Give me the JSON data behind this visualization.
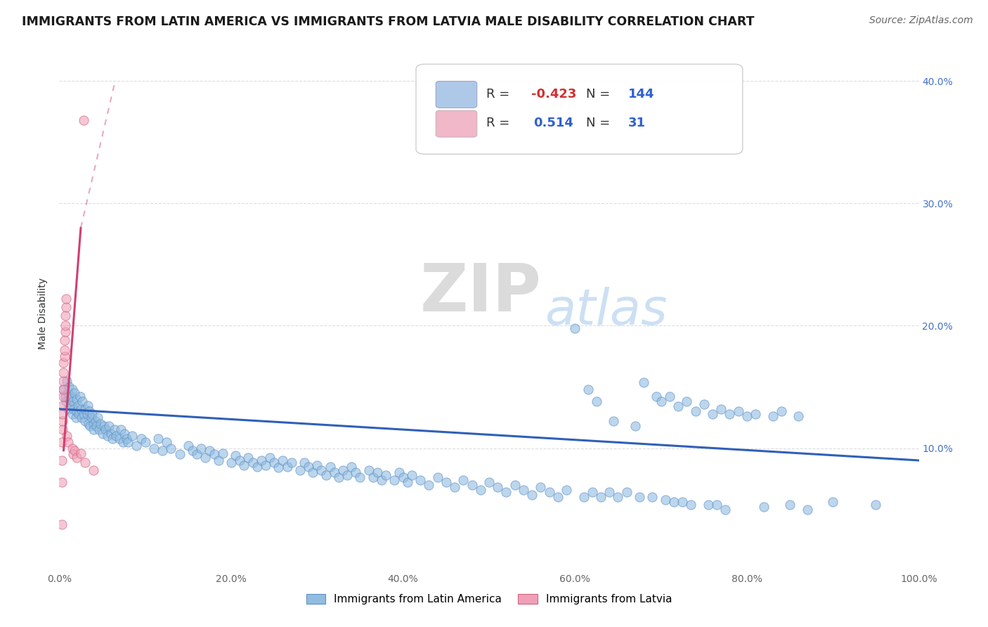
{
  "title": "IMMIGRANTS FROM LATIN AMERICA VS IMMIGRANTS FROM LATVIA MALE DISABILITY CORRELATION CHART",
  "source": "Source: ZipAtlas.com",
  "ylabel": "Male Disability",
  "xlim": [
    0,
    1.0
  ],
  "ylim": [
    0,
    0.42
  ],
  "xticks": [
    0.0,
    0.1,
    0.2,
    0.3,
    0.4,
    0.5,
    0.6,
    0.7,
    0.8,
    0.9,
    1.0
  ],
  "xticklabels": [
    "0.0%",
    "",
    "20.0%",
    "",
    "40.0%",
    "",
    "60.0%",
    "",
    "80.0%",
    "",
    "100.0%"
  ],
  "yticks": [
    0.0,
    0.1,
    0.2,
    0.3,
    0.4
  ],
  "ylabels_left": [
    "",
    "",
    "",
    "",
    ""
  ],
  "ylabels_right": [
    "",
    "10.0%",
    "20.0%",
    "30.0%",
    "40.0%"
  ],
  "legend_entries": [
    {
      "label": "Immigrants from Latin America",
      "color": "#aec8e8",
      "R": "-0.423",
      "N": "144"
    },
    {
      "label": "Immigrants from Latvia",
      "color": "#f0b8c8",
      "R": "0.514",
      "N": "31"
    }
  ],
  "blue_scatter": [
    [
      0.005,
      0.148
    ],
    [
      0.007,
      0.142
    ],
    [
      0.008,
      0.138
    ],
    [
      0.009,
      0.155
    ],
    [
      0.01,
      0.145
    ],
    [
      0.01,
      0.132
    ],
    [
      0.011,
      0.15
    ],
    [
      0.012,
      0.14
    ],
    [
      0.013,
      0.135
    ],
    [
      0.014,
      0.142
    ],
    [
      0.015,
      0.148
    ],
    [
      0.015,
      0.128
    ],
    [
      0.016,
      0.138
    ],
    [
      0.017,
      0.132
    ],
    [
      0.018,
      0.145
    ],
    [
      0.019,
      0.125
    ],
    [
      0.02,
      0.14
    ],
    [
      0.02,
      0.13
    ],
    [
      0.022,
      0.135
    ],
    [
      0.023,
      0.128
    ],
    [
      0.024,
      0.142
    ],
    [
      0.025,
      0.132
    ],
    [
      0.026,
      0.125
    ],
    [
      0.027,
      0.138
    ],
    [
      0.028,
      0.128
    ],
    [
      0.03,
      0.132
    ],
    [
      0.03,
      0.122
    ],
    [
      0.032,
      0.128
    ],
    [
      0.033,
      0.135
    ],
    [
      0.034,
      0.12
    ],
    [
      0.035,
      0.13
    ],
    [
      0.036,
      0.118
    ],
    [
      0.037,
      0.125
    ],
    [
      0.038,
      0.128
    ],
    [
      0.04,
      0.12
    ],
    [
      0.04,
      0.115
    ],
    [
      0.042,
      0.122
    ],
    [
      0.043,
      0.118
    ],
    [
      0.045,
      0.125
    ],
    [
      0.046,
      0.115
    ],
    [
      0.048,
      0.12
    ],
    [
      0.05,
      0.112
    ],
    [
      0.052,
      0.118
    ],
    [
      0.054,
      0.115
    ],
    [
      0.056,
      0.11
    ],
    [
      0.058,
      0.118
    ],
    [
      0.06,
      0.112
    ],
    [
      0.062,
      0.108
    ],
    [
      0.064,
      0.115
    ],
    [
      0.066,
      0.11
    ],
    [
      0.07,
      0.108
    ],
    [
      0.072,
      0.115
    ],
    [
      0.074,
      0.105
    ],
    [
      0.076,
      0.112
    ],
    [
      0.078,
      0.108
    ],
    [
      0.08,
      0.105
    ],
    [
      0.085,
      0.11
    ],
    [
      0.09,
      0.102
    ],
    [
      0.095,
      0.108
    ],
    [
      0.1,
      0.105
    ],
    [
      0.11,
      0.1
    ],
    [
      0.115,
      0.108
    ],
    [
      0.12,
      0.098
    ],
    [
      0.125,
      0.105
    ],
    [
      0.13,
      0.1
    ],
    [
      0.14,
      0.095
    ],
    [
      0.15,
      0.102
    ],
    [
      0.155,
      0.098
    ],
    [
      0.16,
      0.095
    ],
    [
      0.165,
      0.1
    ],
    [
      0.17,
      0.092
    ],
    [
      0.175,
      0.098
    ],
    [
      0.18,
      0.095
    ],
    [
      0.185,
      0.09
    ],
    [
      0.19,
      0.096
    ],
    [
      0.2,
      0.088
    ],
    [
      0.205,
      0.094
    ],
    [
      0.21,
      0.09
    ],
    [
      0.215,
      0.086
    ],
    [
      0.22,
      0.092
    ],
    [
      0.225,
      0.088
    ],
    [
      0.23,
      0.085
    ],
    [
      0.235,
      0.09
    ],
    [
      0.24,
      0.086
    ],
    [
      0.245,
      0.092
    ],
    [
      0.25,
      0.088
    ],
    [
      0.255,
      0.084
    ],
    [
      0.26,
      0.09
    ],
    [
      0.265,
      0.085
    ],
    [
      0.27,
      0.088
    ],
    [
      0.28,
      0.082
    ],
    [
      0.285,
      0.088
    ],
    [
      0.29,
      0.085
    ],
    [
      0.295,
      0.08
    ],
    [
      0.3,
      0.086
    ],
    [
      0.305,
      0.082
    ],
    [
      0.31,
      0.078
    ],
    [
      0.315,
      0.085
    ],
    [
      0.32,
      0.08
    ],
    [
      0.325,
      0.076
    ],
    [
      0.33,
      0.082
    ],
    [
      0.335,
      0.078
    ],
    [
      0.34,
      0.085
    ],
    [
      0.345,
      0.08
    ],
    [
      0.35,
      0.076
    ],
    [
      0.36,
      0.082
    ],
    [
      0.365,
      0.076
    ],
    [
      0.37,
      0.08
    ],
    [
      0.375,
      0.074
    ],
    [
      0.38,
      0.078
    ],
    [
      0.39,
      0.074
    ],
    [
      0.395,
      0.08
    ],
    [
      0.4,
      0.076
    ],
    [
      0.405,
      0.072
    ],
    [
      0.41,
      0.078
    ],
    [
      0.42,
      0.074
    ],
    [
      0.43,
      0.07
    ],
    [
      0.44,
      0.076
    ],
    [
      0.45,
      0.072
    ],
    [
      0.46,
      0.068
    ],
    [
      0.47,
      0.074
    ],
    [
      0.48,
      0.07
    ],
    [
      0.49,
      0.066
    ],
    [
      0.5,
      0.072
    ],
    [
      0.51,
      0.068
    ],
    [
      0.52,
      0.064
    ],
    [
      0.53,
      0.07
    ],
    [
      0.54,
      0.066
    ],
    [
      0.55,
      0.062
    ],
    [
      0.56,
      0.068
    ],
    [
      0.57,
      0.064
    ],
    [
      0.58,
      0.06
    ],
    [
      0.59,
      0.066
    ],
    [
      0.6,
      0.198
    ],
    [
      0.61,
      0.06
    ],
    [
      0.615,
      0.148
    ],
    [
      0.62,
      0.064
    ],
    [
      0.625,
      0.138
    ],
    [
      0.63,
      0.06
    ],
    [
      0.64,
      0.064
    ],
    [
      0.645,
      0.122
    ],
    [
      0.65,
      0.06
    ],
    [
      0.66,
      0.064
    ],
    [
      0.67,
      0.118
    ],
    [
      0.675,
      0.06
    ],
    [
      0.68,
      0.154
    ],
    [
      0.69,
      0.06
    ],
    [
      0.695,
      0.142
    ],
    [
      0.7,
      0.138
    ],
    [
      0.705,
      0.058
    ],
    [
      0.71,
      0.142
    ],
    [
      0.715,
      0.056
    ],
    [
      0.72,
      0.134
    ],
    [
      0.725,
      0.056
    ],
    [
      0.73,
      0.138
    ],
    [
      0.735,
      0.054
    ],
    [
      0.74,
      0.13
    ],
    [
      0.75,
      0.136
    ],
    [
      0.755,
      0.054
    ],
    [
      0.76,
      0.128
    ],
    [
      0.765,
      0.054
    ],
    [
      0.77,
      0.132
    ],
    [
      0.775,
      0.05
    ],
    [
      0.78,
      0.128
    ],
    [
      0.79,
      0.13
    ],
    [
      0.8,
      0.126
    ],
    [
      0.81,
      0.128
    ],
    [
      0.82,
      0.052
    ],
    [
      0.83,
      0.126
    ],
    [
      0.84,
      0.13
    ],
    [
      0.85,
      0.054
    ],
    [
      0.86,
      0.126
    ],
    [
      0.87,
      0.05
    ],
    [
      0.9,
      0.056
    ],
    [
      0.95,
      0.054
    ]
  ],
  "pink_scatter": [
    [
      0.003,
      0.038
    ],
    [
      0.003,
      0.072
    ],
    [
      0.003,
      0.09
    ],
    [
      0.003,
      0.105
    ],
    [
      0.004,
      0.115
    ],
    [
      0.004,
      0.122
    ],
    [
      0.004,
      0.128
    ],
    [
      0.004,
      0.135
    ],
    [
      0.005,
      0.142
    ],
    [
      0.005,
      0.148
    ],
    [
      0.005,
      0.155
    ],
    [
      0.005,
      0.162
    ],
    [
      0.005,
      0.17
    ],
    [
      0.006,
      0.175
    ],
    [
      0.006,
      0.18
    ],
    [
      0.006,
      0.188
    ],
    [
      0.007,
      0.195
    ],
    [
      0.007,
      0.2
    ],
    [
      0.007,
      0.208
    ],
    [
      0.008,
      0.215
    ],
    [
      0.008,
      0.222
    ],
    [
      0.009,
      0.11
    ],
    [
      0.01,
      0.105
    ],
    [
      0.015,
      0.1
    ],
    [
      0.016,
      0.095
    ],
    [
      0.018,
      0.098
    ],
    [
      0.02,
      0.092
    ],
    [
      0.025,
      0.096
    ],
    [
      0.028,
      0.368
    ],
    [
      0.03,
      0.088
    ],
    [
      0.04,
      0.082
    ]
  ],
  "blue_line_solid": [
    [
      0.0,
      0.132
    ],
    [
      1.0,
      0.09
    ]
  ],
  "pink_line_solid": [
    [
      0.005,
      0.098
    ],
    [
      0.025,
      0.28
    ]
  ],
  "pink_line_dashed": [
    [
      0.025,
      0.28
    ],
    [
      0.065,
      0.4
    ]
  ],
  "watermark_zip": "ZIP",
  "watermark_atlas": "atlas",
  "bg_color": "#ffffff",
  "grid_color": "#dddddd",
  "scatter_blue_color": "#90bce0",
  "scatter_blue_edge": "#6090c8",
  "scatter_pink_color": "#f0a0b8",
  "scatter_pink_edge": "#d06080",
  "line_blue_color": "#3060b8",
  "line_pink_color": "#d04070",
  "title_fontsize": 12.5,
  "axis_label_fontsize": 10,
  "tick_fontsize": 10,
  "source_fontsize": 10,
  "right_ytick_color": "#4472c4"
}
